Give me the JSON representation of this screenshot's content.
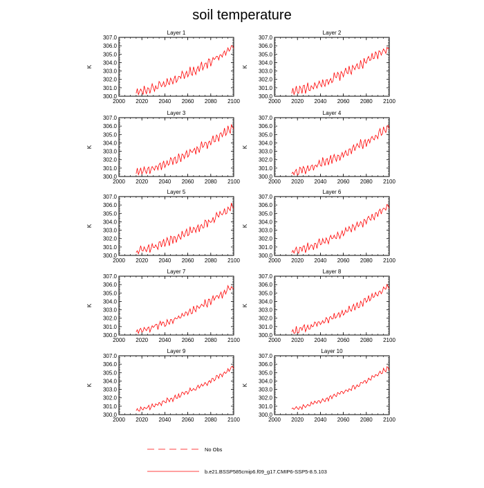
{
  "figure": {
    "title": "soil temperature",
    "legend": [
      {
        "label": "No Obs",
        "style": "dashed",
        "color": "#ff0000"
      },
      {
        "label": "b.e21.BSSP585cmip6.f09_g17.CMIP6-SSP5-8.5.103",
        "style": "solid",
        "color": "#ff0000"
      }
    ],
    "line_color": "#ff0000"
  },
  "chart_data": [
    {
      "type": "line",
      "title": "Layer 1",
      "ylabel": "K",
      "xlim": [
        2000,
        2100
      ],
      "ylim": [
        300.0,
        307.0
      ],
      "xticks": [
        "2000",
        "2020",
        "2040",
        "2060",
        "2080",
        "2100"
      ],
      "yticks": [
        "300.0",
        "301.0",
        "302.0",
        "303.0",
        "304.0",
        "305.0",
        "306.0",
        "307.0"
      ],
      "series": [
        {
          "x_start": 2015,
          "x_end": 2100,
          "start_value": 300.4,
          "end_value": 305.9,
          "amplitude": 0.6
        }
      ]
    },
    {
      "type": "line",
      "title": "Layer 2",
      "ylabel": "K",
      "xlim": [
        2000,
        2100
      ],
      "ylim": [
        300.0,
        307.0
      ],
      "xticks": [
        "2000",
        "2020",
        "2040",
        "2060",
        "2080",
        "2100"
      ],
      "yticks": [
        "300.0",
        "301.0",
        "302.0",
        "303.0",
        "304.0",
        "305.0",
        "306.0",
        "307.0"
      ],
      "series": [
        {
          "x_start": 2015,
          "x_end": 2100,
          "start_value": 300.4,
          "end_value": 305.9,
          "amplitude": 0.6
        }
      ]
    },
    {
      "type": "line",
      "title": "Layer 3",
      "ylabel": "K",
      "xlim": [
        2000,
        2100
      ],
      "ylim": [
        300.0,
        307.0
      ],
      "xticks": [
        "2000",
        "2020",
        "2040",
        "2060",
        "2080",
        "2100"
      ],
      "yticks": [
        "300.0",
        "301.0",
        "302.0",
        "303.0",
        "304.0",
        "305.0",
        "306.0",
        "307.0"
      ],
      "series": [
        {
          "x_start": 2015,
          "x_end": 2100,
          "start_value": 300.4,
          "end_value": 305.9,
          "amplitude": 0.6
        }
      ]
    },
    {
      "type": "line",
      "title": "Layer 4",
      "ylabel": "K",
      "xlim": [
        2000,
        2100
      ],
      "ylim": [
        300.0,
        307.0
      ],
      "xticks": [
        "2000",
        "2020",
        "2040",
        "2060",
        "2080",
        "2100"
      ],
      "yticks": [
        "300.0",
        "301.0",
        "302.0",
        "303.0",
        "304.0",
        "305.0",
        "306.0",
        "307.0"
      ],
      "series": [
        {
          "x_start": 2015,
          "x_end": 2100,
          "start_value": 300.4,
          "end_value": 305.9,
          "amplitude": 0.6
        }
      ]
    },
    {
      "type": "line",
      "title": "Layer 5",
      "ylabel": "K",
      "xlim": [
        2000,
        2100
      ],
      "ylim": [
        300.0,
        307.0
      ],
      "xticks": [
        "2000",
        "2020",
        "2040",
        "2060",
        "2080",
        "2100"
      ],
      "yticks": [
        "300.0",
        "301.0",
        "302.0",
        "303.0",
        "304.0",
        "305.0",
        "306.0",
        "307.0"
      ],
      "series": [
        {
          "x_start": 2015,
          "x_end": 2100,
          "start_value": 300.4,
          "end_value": 305.9,
          "amplitude": 0.55
        }
      ]
    },
    {
      "type": "line",
      "title": "Layer 6",
      "ylabel": "K",
      "xlim": [
        2000,
        2100
      ],
      "ylim": [
        300.0,
        307.0
      ],
      "xticks": [
        "2000",
        "2020",
        "2040",
        "2060",
        "2080",
        "2100"
      ],
      "yticks": [
        "300.0",
        "301.0",
        "302.0",
        "303.0",
        "304.0",
        "305.0",
        "306.0",
        "307.0"
      ],
      "series": [
        {
          "x_start": 2015,
          "x_end": 2100,
          "start_value": 300.4,
          "end_value": 305.9,
          "amplitude": 0.55
        }
      ]
    },
    {
      "type": "line",
      "title": "Layer 7",
      "ylabel": "K",
      "xlim": [
        2000,
        2100
      ],
      "ylim": [
        300.0,
        307.0
      ],
      "xticks": [
        "2000",
        "2020",
        "2040",
        "2060",
        "2080",
        "2100"
      ],
      "yticks": [
        "300.0",
        "301.0",
        "302.0",
        "303.0",
        "304.0",
        "305.0",
        "306.0",
        "307.0"
      ],
      "series": [
        {
          "x_start": 2015,
          "x_end": 2100,
          "start_value": 300.4,
          "end_value": 305.8,
          "amplitude": 0.5
        }
      ]
    },
    {
      "type": "line",
      "title": "Layer 8",
      "ylabel": "K",
      "xlim": [
        2000,
        2100
      ],
      "ylim": [
        300.0,
        307.0
      ],
      "xticks": [
        "2000",
        "2020",
        "2040",
        "2060",
        "2080",
        "2100"
      ],
      "yticks": [
        "300.0",
        "301.0",
        "302.0",
        "303.0",
        "304.0",
        "305.0",
        "306.0",
        "307.0"
      ],
      "series": [
        {
          "x_start": 2015,
          "x_end": 2100,
          "start_value": 300.4,
          "end_value": 305.8,
          "amplitude": 0.45
        }
      ]
    },
    {
      "type": "line",
      "title": "Layer 9",
      "ylabel": "K",
      "xlim": [
        2000,
        2100
      ],
      "ylim": [
        300.0,
        307.0
      ],
      "xticks": [
        "2000",
        "2020",
        "2040",
        "2060",
        "2080",
        "2100"
      ],
      "yticks": [
        "300.0",
        "301.0",
        "302.0",
        "303.0",
        "304.0",
        "305.0",
        "306.0",
        "307.0"
      ],
      "series": [
        {
          "x_start": 2015,
          "x_end": 2100,
          "start_value": 300.5,
          "end_value": 305.7,
          "amplitude": 0.35
        }
      ]
    },
    {
      "type": "line",
      "title": "Layer 10",
      "ylabel": "K",
      "xlim": [
        2000,
        2100
      ],
      "ylim": [
        300.0,
        307.0
      ],
      "xticks": [
        "2000",
        "2020",
        "2040",
        "2060",
        "2080",
        "2100"
      ],
      "yticks": [
        "300.0",
        "301.0",
        "302.0",
        "303.0",
        "304.0",
        "305.0",
        "306.0",
        "307.0"
      ],
      "series": [
        {
          "x_start": 2015,
          "x_end": 2100,
          "start_value": 300.6,
          "end_value": 305.6,
          "amplitude": 0.3
        }
      ]
    }
  ]
}
